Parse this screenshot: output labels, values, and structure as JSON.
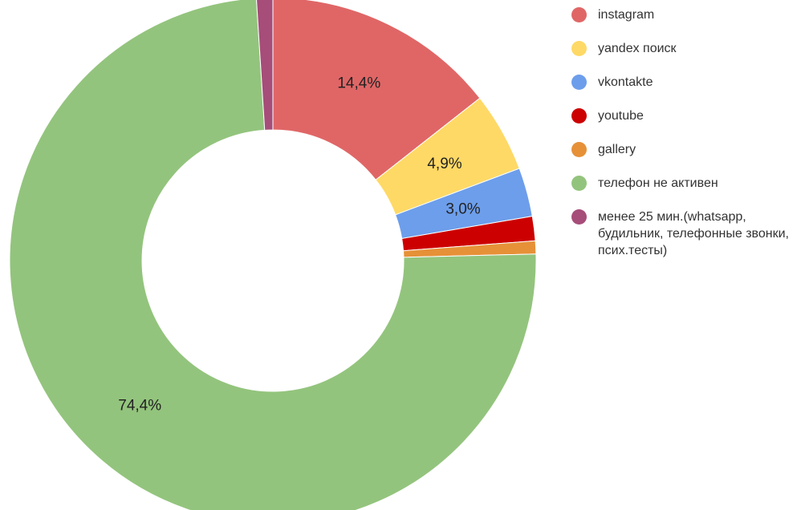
{
  "chart_data": {
    "type": "pie",
    "style": "donut",
    "legend_position": "right",
    "title": "",
    "series": [
      {
        "name": "instagram",
        "value": 14.4,
        "label": "14,4%",
        "color": "#e06666"
      },
      {
        "name": "yandex поиск",
        "value": 4.9,
        "label": "4,9%",
        "color": "#ffd966"
      },
      {
        "name": "vkontakte",
        "value": 3.0,
        "label": "3,0%",
        "color": "#6d9eeb"
      },
      {
        "name": "youtube",
        "value": 1.5,
        "label": "",
        "color": "#cc0000"
      },
      {
        "name": "gallery",
        "value": 0.8,
        "label": "",
        "color": "#e69138"
      },
      {
        "name": "телефон не активен",
        "value": 74.4,
        "label": "74,4%",
        "color": "#93c47d"
      },
      {
        "name": "менее 25 мин.(whatsapp, будильник, телефонные звонки, псих.тесты)",
        "value": 1.0,
        "label": "",
        "color": "#a64d79"
      }
    ]
  }
}
